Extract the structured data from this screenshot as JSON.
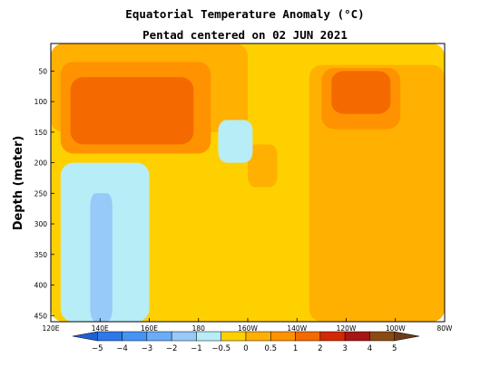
{
  "chart_data": {
    "type": "heatmap",
    "title": "Equatorial Temperature Anomaly (°C)",
    "subtitle": "Pentad centered on 02 JUN 2021",
    "ylabel": "Depth (meter)",
    "xlabel": "",
    "x_ticks": [
      "120E",
      "140E",
      "160E",
      "180",
      "160W",
      "140W",
      "120W",
      "100W",
      "80W"
    ],
    "x_tick_lon": [
      120,
      140,
      160,
      180,
      200,
      220,
      240,
      260,
      280
    ],
    "xlim": [
      120,
      280
    ],
    "y_ticks": [
      50,
      100,
      150,
      200,
      250,
      300,
      350,
      400,
      450
    ],
    "ylim": [
      5,
      460
    ],
    "y_reversed": true,
    "colorbar": {
      "levels": [
        -5,
        -4,
        -3,
        -2,
        -1,
        -0.5,
        0,
        0.5,
        1,
        2,
        3,
        4,
        5
      ],
      "labels": [
        "−5",
        "−4",
        "−3",
        "−2",
        "−1",
        "−0.5",
        "0",
        "0.5",
        "1",
        "2",
        "3",
        "4",
        "5"
      ],
      "colors": [
        "#1f5fd6",
        "#2d78ea",
        "#4593f4",
        "#69adf8",
        "#97c9f9",
        "#b6edf7",
        "#ffd000",
        "#ffb000",
        "#ff9200",
        "#f46a00",
        "#d32800",
        "#a81515",
        "#8a4a12",
        "#6e3a16"
      ]
    },
    "regions": [
      {
        "level": "-0.5..0",
        "lon": [
          120,
          280
        ],
        "depth": [
          5,
          460
        ]
      },
      {
        "level": "0..0.5",
        "lon": [
          120,
          200
        ],
        "depth": [
          5,
          150
        ]
      },
      {
        "level": "0..0.5",
        "lon": [
          225,
          280
        ],
        "depth": [
          40,
          460
        ]
      },
      {
        "level": "0..0.5",
        "lon": [
          200,
          212
        ],
        "depth": [
          170,
          240
        ]
      },
      {
        "level": "0.5..1",
        "lon": [
          124,
          185
        ],
        "depth": [
          35,
          185
        ]
      },
      {
        "level": "0.5..1",
        "lon": [
          230,
          262
        ],
        "depth": [
          45,
          145
        ]
      },
      {
        "level": "1..2",
        "lon": [
          128,
          178
        ],
        "depth": [
          60,
          170
        ]
      },
      {
        "level": "1..2",
        "lon": [
          234,
          258
        ],
        "depth": [
          50,
          120
        ]
      },
      {
        "level": "-1..-0.5",
        "lon": [
          124,
          160
        ],
        "depth": [
          200,
          460
        ]
      },
      {
        "level": "-1..-0.5",
        "lon": [
          188,
          202
        ],
        "depth": [
          130,
          200
        ]
      },
      {
        "level": "-2..-1",
        "lon": [
          136,
          145
        ],
        "depth": [
          250,
          460
        ]
      }
    ]
  }
}
